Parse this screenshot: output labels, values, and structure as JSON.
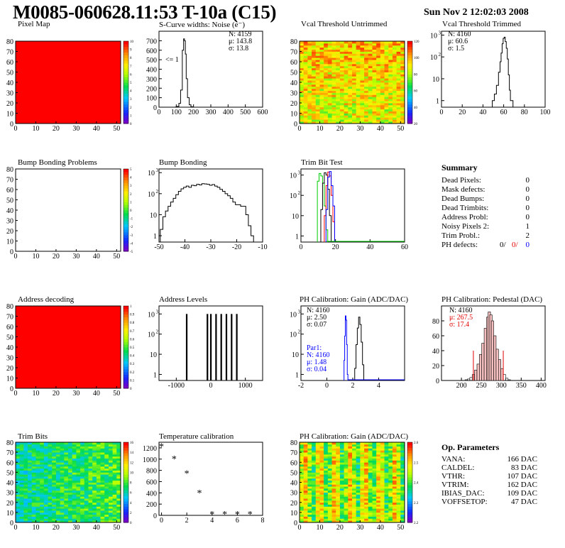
{
  "header": {
    "title": "M0085-060628.11:53 T-10a (C15)",
    "date": "Sun Nov  2 12:02:03 2008"
  },
  "panels": {
    "pixel_map": {
      "title": "Pixel Map"
    },
    "scurve": {
      "title": "S-Curve widths: Noise (e⁻)",
      "lt_label": "<= 1",
      "stats": [
        "N: 4159",
        "μ: 143.8",
        "σ: 13.8"
      ]
    },
    "vcal_untrimmed": {
      "title": "Vcal Threshold Untrimmed"
    },
    "vcal_trimmed": {
      "title": "Vcal Threshold Trimmed",
      "stats": [
        "N: 4160",
        "μ: 60.6",
        "σ:  1.5"
      ]
    },
    "bump_problems": {
      "title": "Bump Bonding Problems"
    },
    "bump_bonding": {
      "title": "Bump Bonding"
    },
    "trim_bit_test": {
      "title": "Trim Bit Test"
    },
    "address_decoding": {
      "title": "Address decoding"
    },
    "address_levels": {
      "title": "Address Levels"
    },
    "ph_gain": {
      "title": "PH Calibration: Gain (ADC/DAC)",
      "stats": [
        "N: 4160",
        "μ: 2.50",
        "σ: 0.07"
      ],
      "par1": [
        "Par1:",
        "N: 4160",
        "μ: 1.48",
        "σ: 0.04"
      ]
    },
    "ph_pedestal": {
      "title": "PH Calibration: Pedestal (DAC)",
      "stats": [
        "N: 4160",
        "μ: 267.5",
        "σ: 17.4"
      ]
    },
    "trim_bits": {
      "title": "Trim Bits"
    },
    "temp_cal": {
      "title": "Temperature calibration"
    },
    "ph_gain_map": {
      "title": "PH Calibration: Gain (ADC/DAC)"
    }
  },
  "summary": {
    "heading": "Summary",
    "rows": [
      {
        "label": "Dead Pixels:",
        "value": "0"
      },
      {
        "label": "Mask defects:",
        "value": "0"
      },
      {
        "label": "Dead Bumps:",
        "value": "0"
      },
      {
        "label": "Dead Trimbits:",
        "value": "0"
      },
      {
        "label": "Address Probl:",
        "value": "0"
      },
      {
        "label": "Noisy Pixels 2:",
        "value": "1"
      },
      {
        "label": "Trim Probl.:",
        "value": "2"
      }
    ],
    "ph_defects": {
      "label": "PH defects:",
      "v1": "0/",
      "v2": "0/",
      "v3": "0"
    }
  },
  "op_parameters": {
    "heading": "Op. Parameters",
    "rows": [
      {
        "label": "VANA:",
        "value": "166 DAC"
      },
      {
        "label": "CALDEL:",
        "value": "83 DAC"
      },
      {
        "label": "VTHR:",
        "value": "107 DAC"
      },
      {
        "label": "VTRIM:",
        "value": "162 DAC"
      },
      {
        "label": "IBIAS_DAC:",
        "value": "109 DAC"
      },
      {
        "label": "VOFFSETOP:",
        "value": "47 DAC"
      }
    ]
  },
  "chart_data": [
    {
      "id": "pixel_map",
      "type": "heatmap",
      "xlim": [
        0,
        52
      ],
      "ylim": [
        0,
        80
      ],
      "xticks": [
        0,
        10,
        20,
        30,
        40,
        50
      ],
      "yticks": [
        0,
        10,
        20,
        30,
        40,
        50,
        60,
        70,
        80
      ],
      "zticks": [
        0,
        1,
        2,
        3,
        4,
        5,
        6,
        7,
        8,
        9,
        10
      ],
      "value": 10
    },
    {
      "id": "scurve",
      "type": "bar",
      "xlim": [
        0,
        600
      ],
      "ylim": [
        0,
        800
      ],
      "xticks": [
        0,
        100,
        200,
        300,
        400,
        500,
        600
      ],
      "yticks": [
        0,
        100,
        200,
        300,
        400,
        500,
        600,
        700
      ],
      "bins": [
        [
          100,
          2
        ],
        [
          110,
          8
        ],
        [
          120,
          40
        ],
        [
          130,
          180
        ],
        [
          140,
          600
        ],
        [
          145,
          720
        ],
        [
          150,
          700
        ],
        [
          155,
          560
        ],
        [
          160,
          300
        ],
        [
          170,
          100
        ],
        [
          180,
          25
        ],
        [
          190,
          5
        ],
        [
          200,
          0
        ]
      ]
    },
    {
      "id": "vcal_untrimmed",
      "type": "heatmap",
      "xlim": [
        0,
        52
      ],
      "ylim": [
        0,
        80
      ],
      "xticks": [
        0,
        10,
        20,
        30,
        40,
        50
      ],
      "yticks": [
        0,
        10,
        20,
        30,
        40,
        50,
        60,
        70,
        80
      ],
      "zticks": [
        20,
        40,
        60,
        80,
        100,
        120
      ]
    },
    {
      "id": "vcal_trimmed",
      "type": "line",
      "scale": "log",
      "xlim": [
        0,
        100
      ],
      "ylim": [
        0.5,
        1500
      ],
      "xticks": [
        0,
        20,
        40,
        60,
        80,
        100
      ],
      "yticks": [
        1,
        10,
        100,
        1000
      ],
      "bins": [
        [
          50,
          1
        ],
        [
          52,
          2
        ],
        [
          54,
          5
        ],
        [
          56,
          20
        ],
        [
          57,
          60
        ],
        [
          58,
          150
        ],
        [
          59,
          400
        ],
        [
          60,
          700
        ],
        [
          61,
          800
        ],
        [
          62,
          500
        ],
        [
          63,
          250
        ],
        [
          64,
          80
        ],
        [
          65,
          15
        ],
        [
          66,
          3
        ],
        [
          67,
          1
        ],
        [
          68,
          1
        ]
      ]
    },
    {
      "id": "bump_problems",
      "type": "heatmap",
      "xlim": [
        0,
        52
      ],
      "ylim": [
        0,
        80
      ],
      "xticks": [
        0,
        10,
        20,
        30,
        40,
        50
      ],
      "yticks": [
        0,
        10,
        20,
        30,
        40,
        50,
        60,
        70,
        80
      ],
      "zticks": [
        -5,
        -4,
        -3,
        -2,
        -1,
        0,
        1,
        2,
        3,
        4,
        5
      ]
    },
    {
      "id": "bump_bonding",
      "type": "line",
      "scale": "log",
      "xlim": [
        -50,
        -10
      ],
      "ylim": [
        0.5,
        1500
      ],
      "xticks": [
        -50,
        -40,
        -30,
        -20,
        -10
      ],
      "yticks": [
        1,
        10,
        100,
        1000
      ],
      "bins": [
        [
          -49,
          2
        ],
        [
          -48,
          8
        ],
        [
          -47,
          15
        ],
        [
          -46,
          25
        ],
        [
          -45,
          40
        ],
        [
          -44,
          60
        ],
        [
          -43,
          90
        ],
        [
          -42,
          130
        ],
        [
          -41,
          170
        ],
        [
          -40,
          200
        ],
        [
          -39,
          230
        ],
        [
          -38,
          200
        ],
        [
          -37,
          250
        ],
        [
          -36,
          240
        ],
        [
          -35,
          280
        ],
        [
          -34,
          260
        ],
        [
          -33,
          300
        ],
        [
          -32,
          290
        ],
        [
          -31,
          280
        ],
        [
          -30,
          250
        ],
        [
          -29,
          270
        ],
        [
          -28,
          230
        ],
        [
          -27,
          200
        ],
        [
          -26,
          160
        ],
        [
          -25,
          130
        ],
        [
          -24,
          100
        ],
        [
          -23,
          80
        ],
        [
          -22,
          60
        ],
        [
          -21,
          40
        ],
        [
          -20,
          30
        ],
        [
          -19,
          30
        ],
        [
          -18,
          25
        ],
        [
          -17,
          25
        ],
        [
          -16,
          10
        ],
        [
          -15,
          3
        ],
        [
          -14,
          1
        ]
      ]
    },
    {
      "id": "trim_bit_test",
      "type": "line",
      "scale": "log",
      "xlim": [
        0,
        60
      ],
      "ylim": [
        0.5,
        2000
      ],
      "xticks": [
        0,
        20,
        40,
        60
      ],
      "yticks": [
        1,
        10,
        100,
        1000
      ],
      "series": [
        {
          "color": "#00cc00",
          "bins": [
            [
              10,
              500
            ],
            [
              11,
              1200
            ],
            [
              12,
              900
            ],
            [
              13,
              400
            ],
            [
              14,
              30
            ],
            [
              15,
              2
            ]
          ]
        },
        {
          "color": "#000000",
          "bins": [
            [
              12,
              20
            ],
            [
              13,
              400
            ],
            [
              14,
              1300
            ],
            [
              15,
              1000
            ],
            [
              16,
              200
            ],
            [
              17,
              10
            ]
          ]
        },
        {
          "color": "#ff0000",
          "bins": [
            [
              14,
              10
            ],
            [
              15,
              300
            ],
            [
              16,
              1400
            ],
            [
              17,
              900
            ],
            [
              18,
              100
            ],
            [
              19,
              5
            ]
          ]
        },
        {
          "color": "#0000ff",
          "bins": [
            [
              15,
              20
            ],
            [
              16,
              800
            ],
            [
              17,
              1500
            ],
            [
              18,
              300
            ],
            [
              19,
              30
            ]
          ]
        }
      ]
    },
    {
      "id": "address_decoding",
      "type": "heatmap",
      "xlim": [
        0,
        52
      ],
      "ylim": [
        0,
        80
      ],
      "xticks": [
        0,
        10,
        20,
        30,
        40,
        50
      ],
      "yticks": [
        0,
        10,
        20,
        30,
        40,
        50,
        60,
        70,
        80
      ],
      "zticks": [
        0,
        0.1,
        0.2,
        0.3,
        0.4,
        0.5,
        0.6,
        0.7,
        0.8,
        0.9,
        1
      ],
      "value": 1
    },
    {
      "id": "address_levels",
      "type": "bar",
      "scale": "log",
      "xlim": [
        -1500,
        1500
      ],
      "ylim": [
        0.5,
        2500
      ],
      "xticks": [
        -1000,
        0,
        1000
      ],
      "yticks": [
        1,
        10,
        100,
        1000
      ],
      "peaks": [
        -700,
        -100,
        0,
        150,
        300,
        450,
        600,
        750
      ],
      "peak_height": 1000
    },
    {
      "id": "ph_gain",
      "type": "line",
      "scale": "log",
      "xlim": [
        -2,
        6
      ],
      "ylim": [
        0.5,
        2500
      ],
      "xticks": [
        -2,
        0,
        2,
        4
      ],
      "yticks": [
        1,
        10,
        100,
        1000
      ],
      "series": [
        {
          "color": "#0000ff",
          "bins": [
            [
              1.35,
              5
            ],
            [
              1.4,
              80
            ],
            [
              1.45,
              800
            ],
            [
              1.5,
              500
            ],
            [
              1.55,
              30
            ],
            [
              1.6,
              1
            ]
          ]
        },
        {
          "color": "#000000",
          "bins": [
            [
              2.2,
              2
            ],
            [
              2.3,
              30
            ],
            [
              2.4,
              200
            ],
            [
              2.5,
              700
            ],
            [
              2.6,
              300
            ],
            [
              2.7,
              40
            ],
            [
              2.8,
              3
            ]
          ]
        }
      ]
    },
    {
      "id": "ph_pedestal",
      "type": "bar",
      "xlim": [
        150,
        410
      ],
      "ylim": [
        0,
        100
      ],
      "xticks": [
        200,
        250,
        300,
        350,
        400
      ],
      "yticks": [
        0,
        20,
        40,
        60,
        80
      ],
      "fit_range": [
        230,
        305
      ],
      "bins": [
        [
          212,
          1
        ],
        [
          218,
          2
        ],
        [
          224,
          4
        ],
        [
          230,
          8
        ],
        [
          236,
          14
        ],
        [
          242,
          22
        ],
        [
          248,
          35
        ],
        [
          254,
          50
        ],
        [
          260,
          70
        ],
        [
          266,
          85
        ],
        [
          270,
          92
        ],
        [
          274,
          88
        ],
        [
          278,
          80
        ],
        [
          284,
          60
        ],
        [
          290,
          42
        ],
        [
          296,
          28
        ],
        [
          302,
          16
        ],
        [
          308,
          8
        ],
        [
          314,
          3
        ],
        [
          320,
          1
        ]
      ]
    },
    {
      "id": "trim_bits",
      "type": "heatmap",
      "xlim": [
        0,
        52
      ],
      "ylim": [
        0,
        80
      ],
      "xticks": [
        0,
        10,
        20,
        30,
        40,
        50
      ],
      "yticks": [
        0,
        10,
        20,
        30,
        40,
        50,
        60,
        70,
        80
      ],
      "zticks": [
        0,
        2,
        4,
        6,
        8,
        10,
        12,
        14,
        16
      ]
    },
    {
      "id": "temp_cal",
      "type": "scatter",
      "xlim": [
        -0.2,
        8
      ],
      "ylim": [
        0,
        1300
      ],
      "xticks": [
        0,
        2,
        4,
        6,
        8
      ],
      "yticks": [
        0,
        200,
        400,
        600,
        800,
        1000,
        1200
      ],
      "points": [
        [
          0,
          1220
        ],
        [
          1,
          1000
        ],
        [
          2,
          740
        ],
        [
          3,
          390
        ],
        [
          4,
          10
        ],
        [
          5,
          10
        ],
        [
          6,
          10
        ],
        [
          7,
          10
        ]
      ]
    },
    {
      "id": "ph_gain_map",
      "type": "heatmap",
      "xlim": [
        0,
        52
      ],
      "ylim": [
        0,
        80
      ],
      "xticks": [
        0,
        10,
        20,
        30,
        40,
        50
      ],
      "yticks": [
        0,
        10,
        20,
        30,
        40,
        50,
        60,
        70,
        80
      ],
      "zticks": [
        2.2,
        2.3,
        2.4,
        2.5,
        2.6
      ]
    }
  ]
}
